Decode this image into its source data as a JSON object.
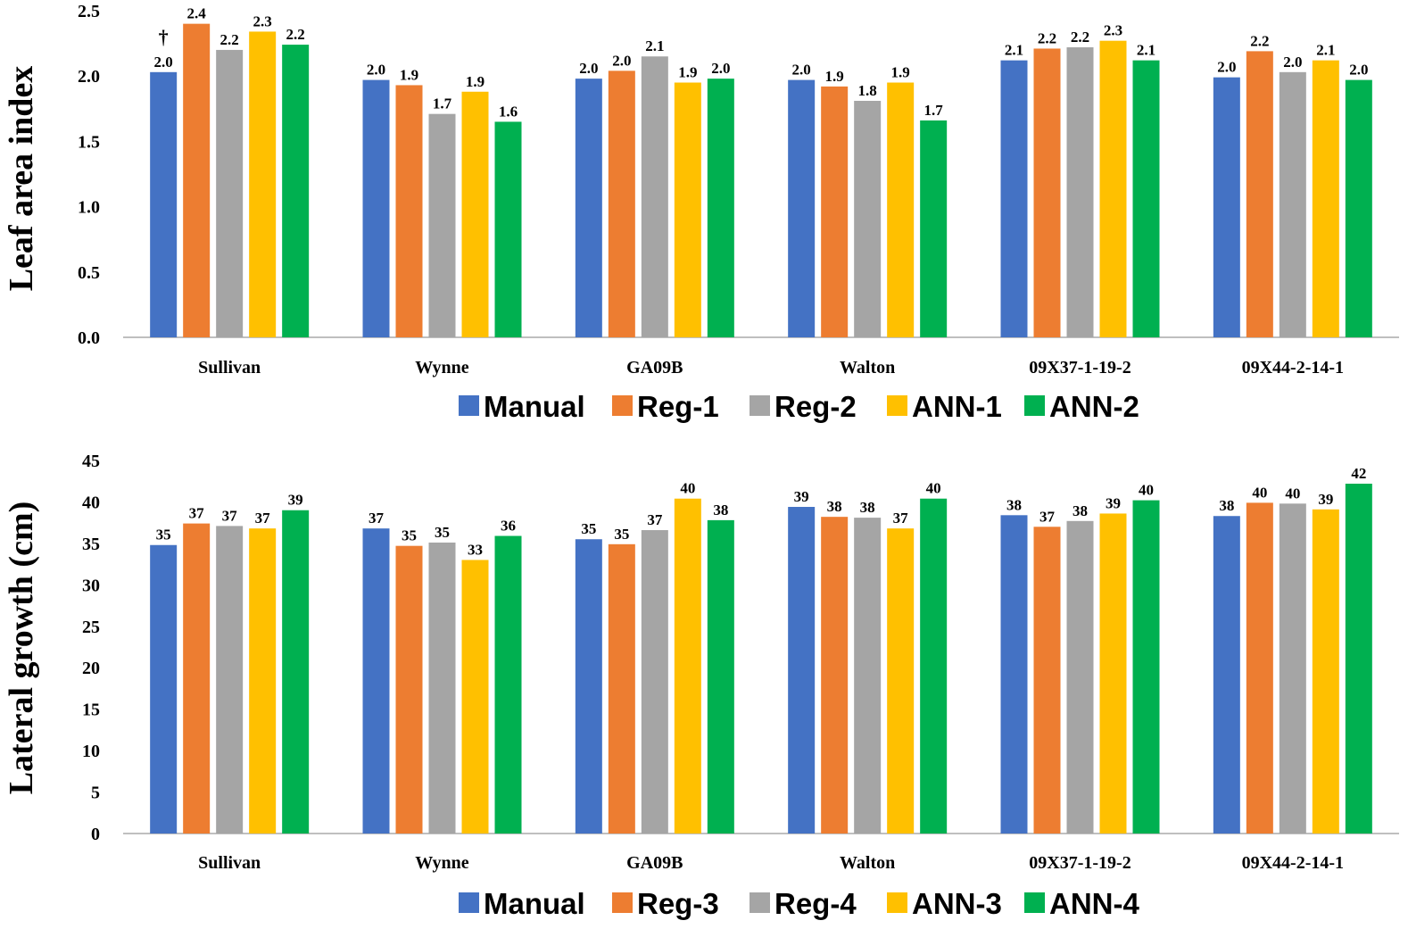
{
  "colors": {
    "manual": "#4472C4",
    "reg_odd": "#ED7D31",
    "reg_even": "#A5A5A5",
    "ann_odd": "#FFC000",
    "ann_even": "#00B050",
    "grid": "#d9d9d9",
    "axis": "#bfbfbf"
  },
  "chart_data": [
    {
      "type": "bar",
      "ylabel": "Leaf area index",
      "xlabel": "",
      "ylim": [
        0,
        2.5
      ],
      "yticks": [
        "0.0",
        "0.5",
        "1.0",
        "1.5",
        "2.0",
        "2.5"
      ],
      "grid": false,
      "legend_position": "bottom",
      "categories": [
        "Sullivan",
        "Wynne",
        "GA09B",
        "Walton",
        "09X37-1-19-2",
        "09X44-2-14-1"
      ],
      "series": [
        {
          "name": "Manual",
          "values": [
            2.03,
            1.97,
            1.98,
            1.97,
            2.12,
            1.99
          ],
          "labels": [
            "2.0",
            "2.0",
            "2.0",
            "2.0",
            "2.1",
            "2.0"
          ]
        },
        {
          "name": "Reg-1",
          "values": [
            2.4,
            1.93,
            2.04,
            1.92,
            2.21,
            2.19
          ],
          "labels": [
            "2.4",
            "1.9",
            "2.0",
            "1.9",
            "2.2",
            "2.2"
          ]
        },
        {
          "name": "Reg-2",
          "values": [
            2.2,
            1.71,
            2.15,
            1.81,
            2.22,
            2.03
          ],
          "labels": [
            "2.2",
            "1.7",
            "2.1",
            "1.8",
            "2.2",
            "2.0"
          ]
        },
        {
          "name": "ANN-1",
          "values": [
            2.34,
            1.88,
            1.95,
            1.95,
            2.27,
            2.12
          ],
          "labels": [
            "2.3",
            "1.9",
            "1.9",
            "1.9",
            "2.3",
            "2.1"
          ]
        },
        {
          "name": "ANN-2",
          "values": [
            2.24,
            1.65,
            1.98,
            1.66,
            2.12,
            1.97
          ],
          "labels": [
            "2.2",
            "1.6",
            "2.0",
            "1.7",
            "2.1",
            "2.0"
          ]
        }
      ],
      "annotations": [
        {
          "text": "†",
          "category": "Sullivan",
          "series": "Manual"
        }
      ]
    },
    {
      "type": "bar",
      "ylabel": "Lateral growth (cm)",
      "xlabel": "",
      "ylim": [
        0,
        45
      ],
      "yticks": [
        "0",
        "5",
        "10",
        "15",
        "20",
        "25",
        "30",
        "35",
        "40",
        "45"
      ],
      "grid": false,
      "legend_position": "bottom",
      "categories": [
        "Sullivan",
        "Wynne",
        "GA09B",
        "Walton",
        "09X37-1-19-2",
        "09X44-2-14-1"
      ],
      "series": [
        {
          "name": "Manual",
          "values": [
            34.8,
            36.8,
            35.5,
            39.4,
            38.4,
            38.3
          ],
          "labels": [
            "35",
            "37",
            "35",
            "39",
            "38",
            "38"
          ]
        },
        {
          "name": "Reg-3",
          "values": [
            37.4,
            34.7,
            34.9,
            38.2,
            37.0,
            39.9
          ],
          "labels": [
            "37",
            "35",
            "35",
            "38",
            "37",
            "40"
          ]
        },
        {
          "name": "Reg-4",
          "values": [
            37.1,
            35.1,
            36.6,
            38.1,
            37.7,
            39.8
          ],
          "labels": [
            "37",
            "35",
            "37",
            "38",
            "38",
            "40"
          ]
        },
        {
          "name": "ANN-3",
          "values": [
            36.8,
            33.0,
            40.4,
            36.8,
            38.6,
            39.1
          ],
          "labels": [
            "37",
            "33",
            "40",
            "37",
            "39",
            "39"
          ]
        },
        {
          "name": "ANN-4",
          "values": [
            39.0,
            35.9,
            37.8,
            40.4,
            40.2,
            42.2
          ],
          "labels": [
            "39",
            "36",
            "38",
            "40",
            "40",
            "42"
          ]
        }
      ],
      "annotations": []
    }
  ]
}
